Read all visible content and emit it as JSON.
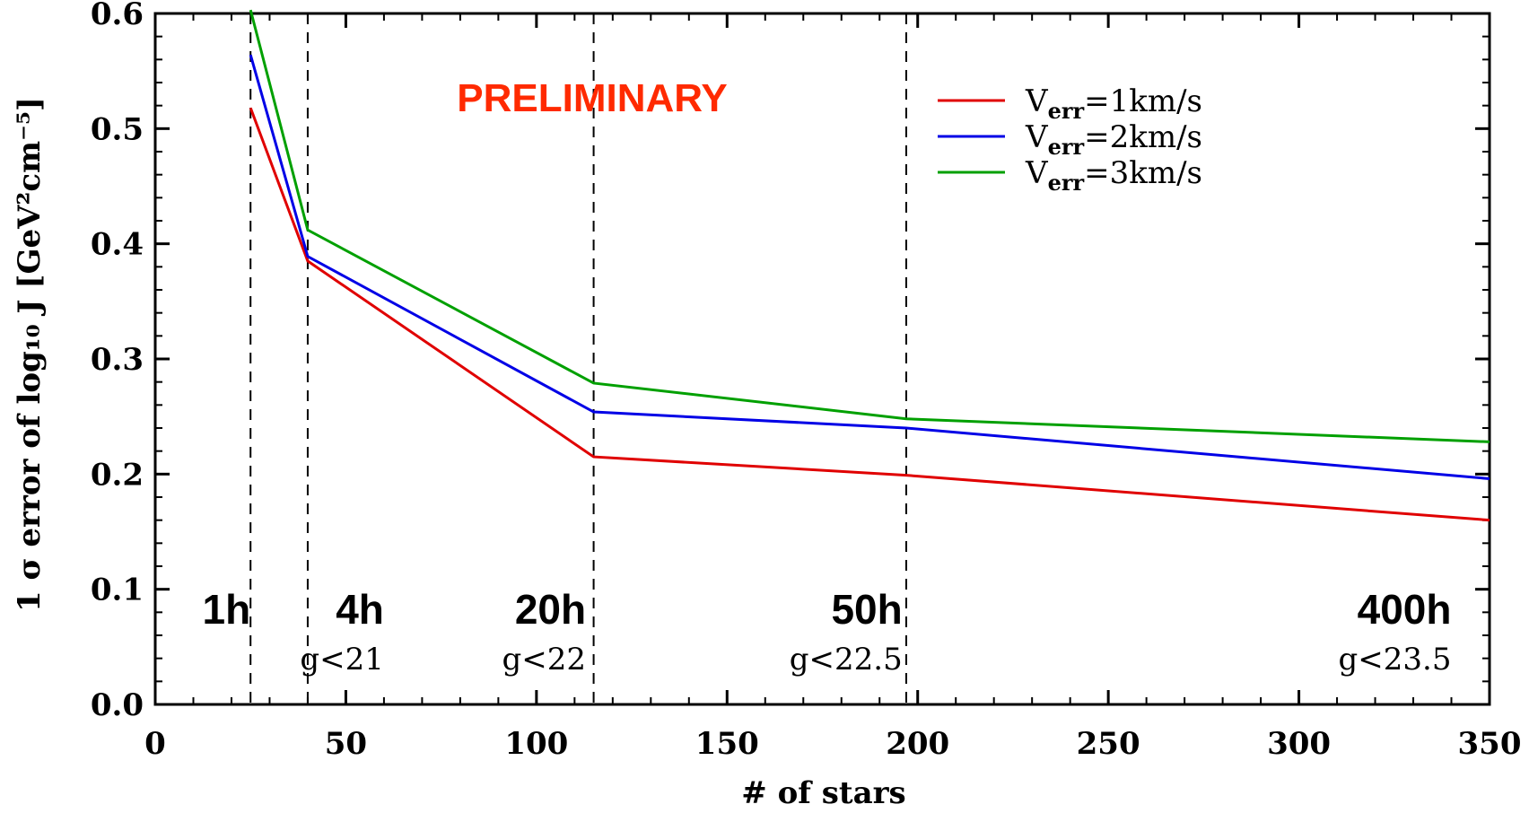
{
  "chart_data": {
    "type": "line",
    "xlabel": "# of stars",
    "ylabel": "1 σ error of log₁₀ J [GeV²cm⁻⁵]",
    "xlim": [
      0,
      350
    ],
    "ylim": [
      0.0,
      0.6
    ],
    "xticks": [
      "0",
      "50",
      "100",
      "150",
      "200",
      "250",
      "300",
      "350"
    ],
    "yticks": [
      "0.0",
      "0.1",
      "0.2",
      "0.3",
      "0.4",
      "0.5",
      "0.6"
    ],
    "grid": false,
    "legend_position": "top-right",
    "annotation": "PRELIMINARY",
    "annotation_color": "#ff2a00",
    "series": [
      {
        "name": "V_err=1km/s",
        "color": "#e00000",
        "x": [
          25,
          40,
          115,
          197,
          350
        ],
        "y": [
          0.518,
          0.385,
          0.215,
          0.199,
          0.16
        ]
      },
      {
        "name": "V_err=2km/s",
        "color": "#0000e6",
        "x": [
          25,
          40,
          115,
          197,
          350
        ],
        "y": [
          0.564,
          0.389,
          0.254,
          0.24,
          0.196
        ]
      },
      {
        "name": "V_err=3km/s",
        "color": "#00a000",
        "x": [
          25,
          40,
          115,
          197,
          350
        ],
        "y": [
          0.603,
          0.412,
          0.279,
          0.248,
          0.228
        ]
      }
    ],
    "legend_entries": [
      {
        "base": "V",
        "sub": "err",
        "rest": "=1km/s"
      },
      {
        "base": "V",
        "sub": "err",
        "rest": "=2km/s"
      },
      {
        "base": "V",
        "sub": "err",
        "rest": "=3km/s"
      }
    ],
    "vlines": [
      25,
      40,
      115,
      197
    ],
    "regions": [
      {
        "time": "1h",
        "mag": "",
        "x_right": 25
      },
      {
        "time": "4h",
        "mag": "g<21",
        "x_right": 60
      },
      {
        "time": "20h",
        "mag": "g<22",
        "x_right": 113
      },
      {
        "time": "50h",
        "mag": "g<22.5",
        "x_right": 196
      },
      {
        "time": "400h",
        "mag": "g<23.5",
        "x_right": 340
      }
    ]
  }
}
